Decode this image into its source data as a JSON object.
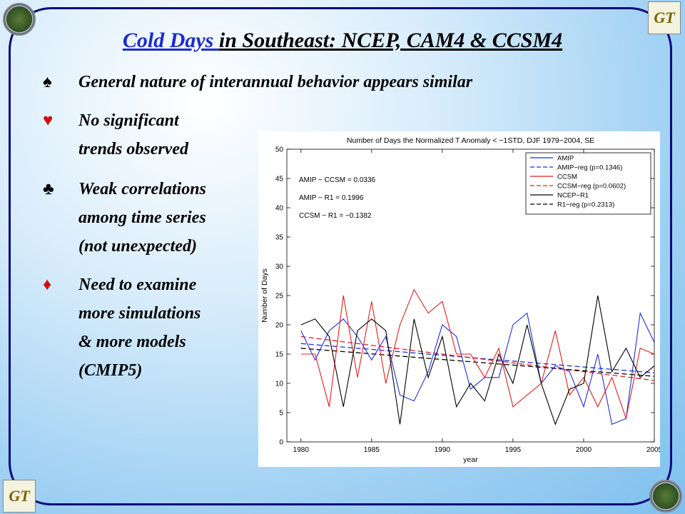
{
  "title": {
    "link_part": "Cold Days ",
    "rest": "in Southeast: NCEP, CAM4 & CCSM4"
  },
  "bullets": [
    {
      "symbol": "♠",
      "color": "#000000",
      "lines": [
        "General nature of interannual behavior appears similar"
      ]
    },
    {
      "symbol": "♥",
      "color": "#d01010",
      "lines": [
        "No significant",
        "trends observed"
      ]
    },
    {
      "symbol": "♣",
      "color": "#000000",
      "lines": [
        "Weak correlations",
        "among time series",
        "(not unexpected)"
      ]
    },
    {
      "symbol": "♦",
      "color": "#d01010",
      "lines": [
        "Need to examine",
        "more simulations",
        "& more models",
        "(CMIP5)"
      ]
    }
  ],
  "logos": {
    "gt_text": "GT"
  },
  "chart_data": {
    "type": "line",
    "title": "Number of Days the Normalized T Anomaly < −1STD, DJF 1979−2004, SE",
    "xlabel": "year",
    "ylabel": "Number of Days",
    "xlim": [
      1979,
      2005
    ],
    "ylim": [
      0,
      50
    ],
    "x_ticks": [
      1980,
      1985,
      1990,
      1995,
      2000,
      2005
    ],
    "y_ticks": [
      0,
      5,
      10,
      15,
      20,
      25,
      30,
      35,
      40,
      45,
      50
    ],
    "x": [
      1980,
      1981,
      1982,
      1983,
      1984,
      1985,
      1986,
      1987,
      1988,
      1989,
      1990,
      1991,
      1992,
      1993,
      1994,
      1995,
      1996,
      1997,
      1998,
      1999,
      2000,
      2001,
      2002,
      2003,
      2004,
      2005
    ],
    "series": [
      {
        "name": "AMIP",
        "color": "#1f2fd6",
        "dash": "solid",
        "values": [
          19,
          14,
          19,
          21,
          18,
          14,
          18,
          8,
          7,
          12,
          20,
          18,
          9,
          11,
          11,
          20,
          22,
          10,
          13,
          12,
          6,
          15,
          3,
          4,
          22,
          17
        ]
      },
      {
        "name": "CCSM",
        "color": "#e02020",
        "dash": "solid",
        "values": [
          15,
          15,
          6,
          25,
          11,
          24,
          10,
          20,
          26,
          22,
          24,
          15,
          15,
          11,
          16,
          6,
          8,
          10,
          19,
          8,
          11,
          6,
          11,
          4,
          16,
          15
        ]
      },
      {
        "name": "NCEP−R1",
        "color": "#000000",
        "dash": "solid",
        "values": [
          20,
          21,
          18,
          6,
          19,
          21,
          19,
          3,
          21,
          11,
          18,
          6,
          10,
          7,
          15,
          10,
          20,
          10,
          3,
          9,
          10,
          25,
          12,
          16,
          11,
          13
        ]
      }
    ],
    "regressions": [
      {
        "name": "AMIP−reg (p=0.1346)",
        "color": "#1f2fd6",
        "start": 16.8,
        "end": 11.8
      },
      {
        "name": "CCSM−reg (p=0.0602)",
        "color": "#e02020",
        "start": 18.0,
        "end": 10.5
      },
      {
        "name": "R1−reg (p=0.2313)",
        "color": "#000000",
        "start": 16.0,
        "end": 11.2
      }
    ],
    "legend": [
      "AMIP",
      "AMIP−reg (p=0.1346)",
      "CCSM",
      "CCSM−reg (p=0.0602)",
      "NCEP−R1",
      "R1−reg (p=0.2313)"
    ],
    "legend_position": "top-right",
    "annotations": [
      "AMIP − CCSM = 0.0336",
      "AMIP − R1 = 0.1996",
      "CCSM − R1 = −0.1382"
    ]
  }
}
